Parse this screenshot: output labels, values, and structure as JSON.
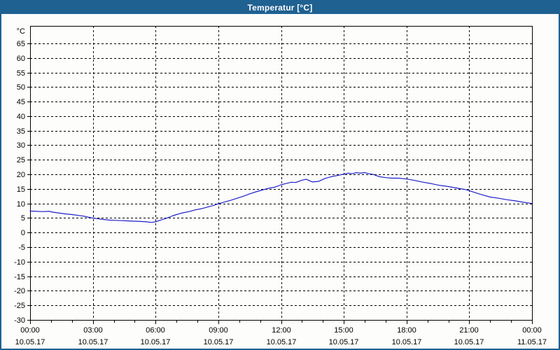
{
  "window": {
    "title": "Temperatur [°C]",
    "titlebar_color": "#1F6191",
    "border_color": "#1F6191",
    "background_color": "#FDFDFC",
    "title_text_color": "#FFFFFF"
  },
  "chart_data": {
    "type": "line",
    "title": "Temperatur [°C]",
    "grid": {
      "dashed": true,
      "color": "#000000",
      "axis_color": "#000000"
    },
    "y_axis": {
      "unit_label": "°C",
      "range": [
        -30,
        71
      ],
      "tick_values": [
        -30,
        -25,
        -20,
        -15,
        -10,
        -5,
        0,
        5,
        10,
        15,
        20,
        25,
        30,
        35,
        40,
        45,
        50,
        55,
        60,
        65
      ],
      "tick_labels": [
        "-30",
        "-25",
        "-20",
        "-15",
        "-10",
        "-5",
        "0",
        "5",
        "10",
        "15",
        "20",
        "25",
        "30",
        "35",
        "40",
        "45",
        "50",
        "55",
        "60",
        "65"
      ]
    },
    "x_axis": {
      "range_hours": [
        0,
        24
      ],
      "minor_tick_step_hours": 1,
      "major_ticks": [
        {
          "hour": 0,
          "time": "00:00",
          "date": "10.05.17"
        },
        {
          "hour": 3,
          "time": "03:00",
          "date": "10.05.17"
        },
        {
          "hour": 6,
          "time": "06:00",
          "date": "10.05.17"
        },
        {
          "hour": 9,
          "time": "09:00",
          "date": "10.05.17"
        },
        {
          "hour": 12,
          "time": "12:00",
          "date": "10.05.17"
        },
        {
          "hour": 15,
          "time": "15:00",
          "date": "10.05.17"
        },
        {
          "hour": 18,
          "time": "18:00",
          "date": "10.05.17"
        },
        {
          "hour": 21,
          "time": "21:00",
          "date": "10.05.17"
        },
        {
          "hour": 24,
          "time": "00:00",
          "date": "11.05.17"
        }
      ]
    },
    "series": [
      {
        "name": "Temperatur",
        "color": "#2020C8",
        "points": [
          [
            0,
            7.4
          ],
          [
            0.3,
            7.3
          ],
          [
            0.6,
            7.2
          ],
          [
            0.9,
            7.3
          ],
          [
            1.1,
            7.0
          ],
          [
            1.4,
            6.7
          ],
          [
            1.7,
            6.4
          ],
          [
            2.0,
            6.2
          ],
          [
            2.3,
            5.9
          ],
          [
            2.6,
            5.6
          ],
          [
            2.9,
            5.1
          ],
          [
            3.2,
            4.8
          ],
          [
            3.5,
            4.5
          ],
          [
            3.8,
            4.3
          ],
          [
            4.1,
            4.2
          ],
          [
            4.4,
            4.1
          ],
          [
            4.7,
            4.0
          ],
          [
            5.0,
            3.9
          ],
          [
            5.3,
            3.8
          ],
          [
            5.55,
            3.7
          ],
          [
            5.8,
            3.5
          ],
          [
            6.0,
            3.7
          ],
          [
            6.2,
            4.2
          ],
          [
            6.5,
            4.9
          ],
          [
            6.8,
            5.7
          ],
          [
            7.0,
            6.2
          ],
          [
            7.3,
            6.8
          ],
          [
            7.6,
            7.2
          ],
          [
            7.9,
            7.8
          ],
          [
            8.2,
            8.2
          ],
          [
            8.5,
            8.8
          ],
          [
            8.8,
            9.4
          ],
          [
            9.0,
            9.9
          ],
          [
            9.3,
            10.5
          ],
          [
            9.6,
            11.1
          ],
          [
            9.9,
            11.8
          ],
          [
            10.2,
            12.5
          ],
          [
            10.5,
            13.3
          ],
          [
            10.8,
            14.0
          ],
          [
            11.1,
            14.6
          ],
          [
            11.4,
            15.2
          ],
          [
            11.7,
            15.6
          ],
          [
            12.0,
            16.4
          ],
          [
            12.2,
            16.8
          ],
          [
            12.5,
            17.3
          ],
          [
            12.7,
            17.2
          ],
          [
            13.0,
            18.0
          ],
          [
            13.2,
            18.3
          ],
          [
            13.5,
            17.4
          ],
          [
            13.8,
            17.6
          ],
          [
            14.1,
            18.6
          ],
          [
            14.4,
            19.2
          ],
          [
            14.7,
            19.6
          ],
          [
            15.0,
            20.1
          ],
          [
            15.2,
            20.4
          ],
          [
            15.4,
            20.2
          ],
          [
            15.6,
            20.6
          ],
          [
            15.8,
            20.4
          ],
          [
            16.0,
            20.6
          ],
          [
            16.2,
            20.2
          ],
          [
            16.4,
            20.0
          ],
          [
            16.7,
            19.2
          ],
          [
            17.0,
            18.9
          ],
          [
            17.3,
            18.7
          ],
          [
            17.6,
            18.7
          ],
          [
            18.0,
            18.4
          ],
          [
            18.4,
            17.9
          ],
          [
            18.8,
            17.3
          ],
          [
            19.2,
            16.8
          ],
          [
            19.6,
            16.2
          ],
          [
            20.0,
            15.8
          ],
          [
            20.4,
            15.3
          ],
          [
            20.8,
            14.8
          ],
          [
            21.0,
            14.4
          ],
          [
            21.3,
            13.7
          ],
          [
            21.6,
            13.0
          ],
          [
            22.0,
            12.2
          ],
          [
            22.4,
            11.8
          ],
          [
            22.8,
            11.3
          ],
          [
            23.2,
            10.9
          ],
          [
            23.6,
            10.4
          ],
          [
            24.0,
            10.0
          ]
        ]
      }
    ]
  }
}
